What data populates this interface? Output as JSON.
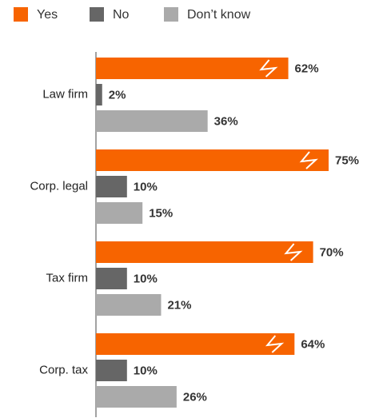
{
  "chart_data": {
    "type": "bar",
    "orientation": "horizontal",
    "categories": [
      "Law firm",
      "Corp. legal",
      "Tax firm",
      "Corp. tax"
    ],
    "series": [
      {
        "name": "Yes",
        "color": "#f76400",
        "values": [
          62,
          75,
          70,
          64
        ],
        "value_labels": [
          "62%",
          "75%",
          "70%",
          "64%"
        ]
      },
      {
        "name": "No",
        "color": "#666666",
        "values": [
          2,
          10,
          10,
          10
        ],
        "value_labels": [
          "2%",
          "10%",
          "10%",
          "10%"
        ]
      },
      {
        "name": "Don’t know",
        "color": "#aaaaaa",
        "values": [
          36,
          15,
          21,
          26
        ],
        "value_labels": [
          "36%",
          "15%",
          "21%",
          "26%"
        ]
      }
    ],
    "xlim": [
      0,
      75
    ]
  }
}
